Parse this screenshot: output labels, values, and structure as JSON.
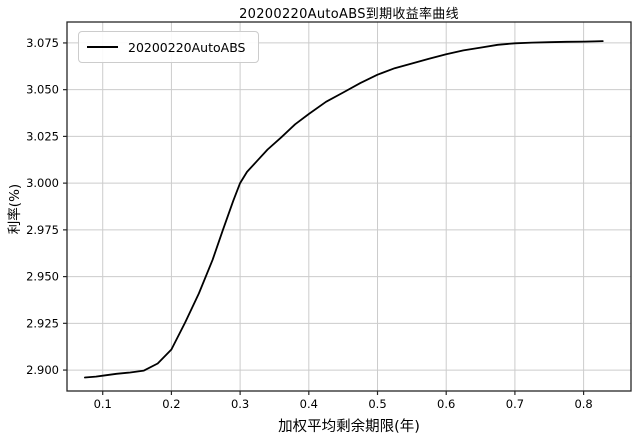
{
  "chart_data": {
    "type": "line",
    "title": "20200220AutoABS到期收益率曲线",
    "xlabel": "加权平均剩余期限(年)",
    "ylabel": "利率(%)",
    "legend": {
      "entries": [
        "20200220AutoABS"
      ],
      "position": "upper left"
    },
    "grid": true,
    "xlim": [
      0.048,
      0.869
    ],
    "ylim": [
      2.8888,
      3.0862
    ],
    "xticks": [
      0.1,
      0.2,
      0.3,
      0.4,
      0.5,
      0.6,
      0.7,
      0.8
    ],
    "xtick_labels": [
      "0.1",
      "0.2",
      "0.3",
      "0.4",
      "0.5",
      "0.6",
      "0.7",
      "0.8"
    ],
    "yticks": [
      2.9,
      2.925,
      2.95,
      2.975,
      3.0,
      3.025,
      3.05,
      3.075
    ],
    "ytick_labels": [
      "2.900",
      "2.925",
      "2.950",
      "2.975",
      "3.000",
      "3.025",
      "3.050",
      "3.075"
    ],
    "colors": {
      "line": "#000000",
      "grid": "#cccccc",
      "frame": "#262626",
      "background": "#ffffff",
      "legend_border": "#cccccc"
    },
    "series": [
      {
        "name": "20200220AutoABS",
        "x": [
          0.074,
          0.09,
          0.1,
          0.12,
          0.14,
          0.16,
          0.18,
          0.2,
          0.22,
          0.24,
          0.26,
          0.275,
          0.29,
          0.3,
          0.31,
          0.325,
          0.34,
          0.36,
          0.38,
          0.4,
          0.425,
          0.45,
          0.475,
          0.5,
          0.525,
          0.55,
          0.575,
          0.6,
          0.625,
          0.65,
          0.675,
          0.7,
          0.725,
          0.75,
          0.775,
          0.8,
          0.815,
          0.828
        ],
        "y": [
          2.896,
          2.8965,
          2.897,
          2.898,
          2.8987,
          2.8997,
          2.9035,
          2.911,
          2.9255,
          2.941,
          2.959,
          2.975,
          2.9905,
          3.0,
          3.006,
          3.012,
          3.018,
          3.0245,
          3.0315,
          3.037,
          3.0435,
          3.0485,
          3.0535,
          3.058,
          3.0615,
          3.064,
          3.0665,
          3.069,
          3.071,
          3.0725,
          3.074,
          3.0748,
          3.0752,
          3.0754,
          3.0756,
          3.0757,
          3.0758,
          3.076
        ]
      }
    ]
  }
}
